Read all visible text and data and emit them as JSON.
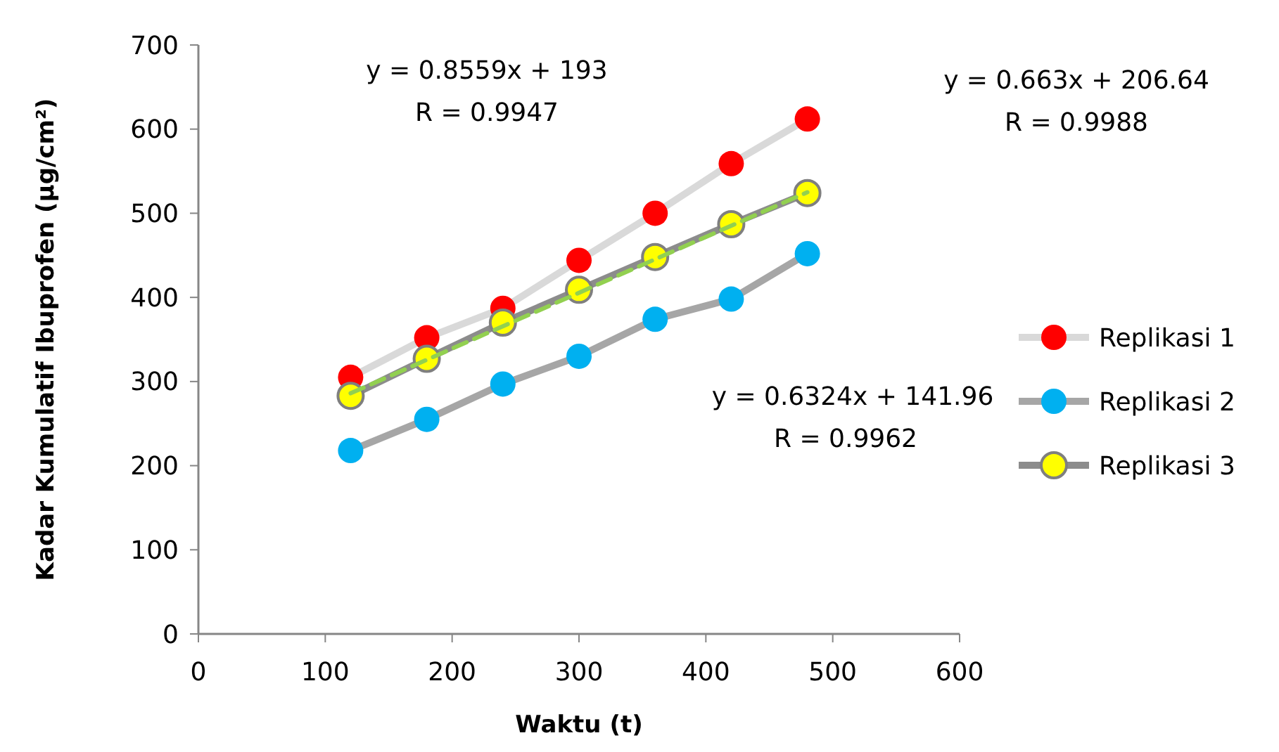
{
  "chart_data": {
    "type": "line",
    "xlabel": "Waktu (t)",
    "ylabel": "Kadar Kumulatif Ibuprofen (µg/cm²)",
    "x": [
      120,
      180,
      240,
      300,
      360,
      420,
      480
    ],
    "series": [
      {
        "name": "Replikasi 1",
        "color": "#ff0000",
        "values": [
          305,
          352,
          387,
          444,
          500,
          559,
          612
        ]
      },
      {
        "name": "Replikasi 2",
        "color": "#00b0f0",
        "values": [
          218,
          255,
          297,
          330,
          374,
          398,
          452
        ]
      },
      {
        "name": "Replikasi 3",
        "color": "#ffff00",
        "values": [
          283,
          327,
          370,
          409,
          448,
          487,
          524
        ]
      },
      {
        "type": "line",
        "color": "#92d050",
        "line_style": "dashed",
        "marker": "none",
        "x": [
          120,
          480
        ],
        "values": [
          286,
          525
        ]
      }
    ],
    "marker": "circle",
    "xlim": [
      0,
      600
    ],
    "xticks": [
      0,
      100,
      200,
      300,
      400,
      500,
      600
    ],
    "ylim": [
      0,
      700
    ],
    "yticks": [
      0,
      100,
      200,
      300,
      400,
      500,
      600,
      700
    ],
    "grid": false,
    "legend": "right",
    "annotations": [
      "y = 0.8559x + 193",
      "R  = 0.9947",
      "y = 0.663x + 206.64",
      "R  = 0.9988",
      "y = 0.6324x + 141.96",
      "R  = 0.9962"
    ]
  }
}
